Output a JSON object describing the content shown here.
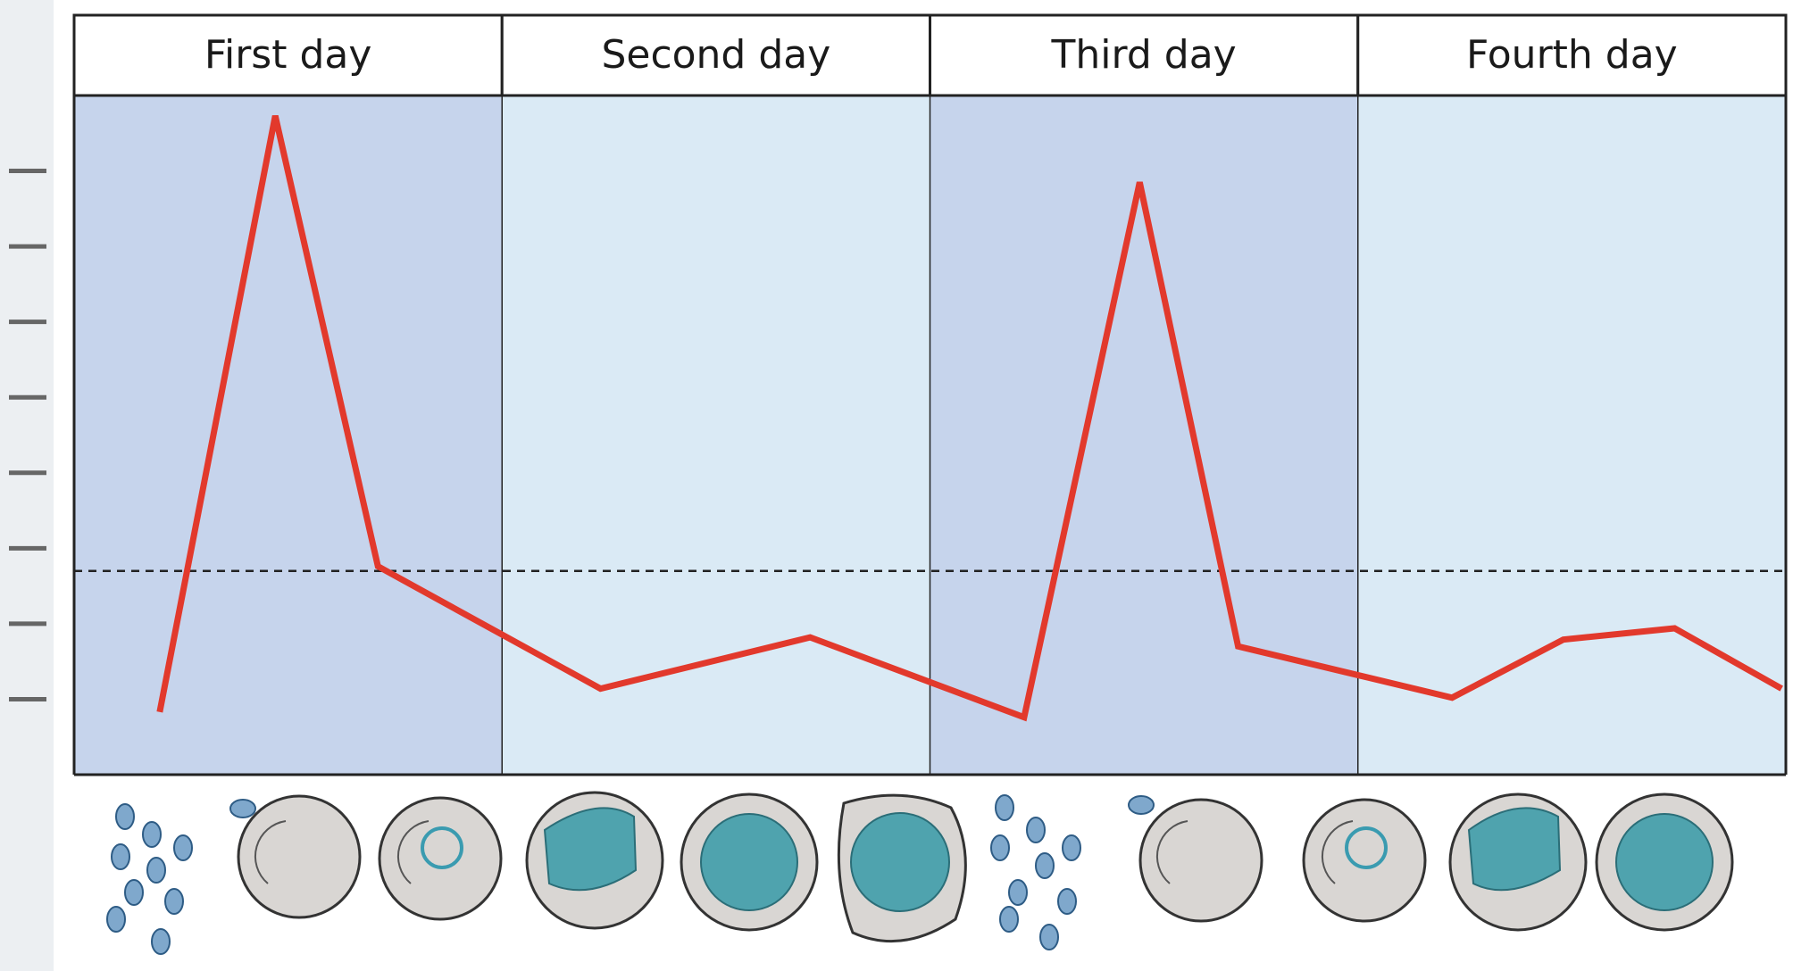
{
  "chart_data": {
    "type": "line",
    "columns": [
      "First day",
      "Second day",
      "Third day",
      "Fourth day"
    ],
    "x": [
      0.2,
      0.47,
      0.71,
      1.23,
      1.72,
      2.22,
      2.49,
      2.72,
      3.22,
      3.48,
      3.74,
      3.99
    ],
    "values": [
      0.83,
      8.73,
      2.76,
      1.14,
      1.82,
      0.76,
      7.85,
      1.7,
      1.02,
      1.79,
      1.94,
      1.14
    ],
    "color": "#e2392c",
    "xlim": [
      0,
      4
    ],
    "xticks": [
      0,
      1,
      2,
      3,
      4
    ],
    "ylim": [
      0,
      9
    ],
    "yticks": [
      1,
      2,
      3,
      4,
      5,
      6,
      7,
      8
    ],
    "threshold": 2.7
  }
}
